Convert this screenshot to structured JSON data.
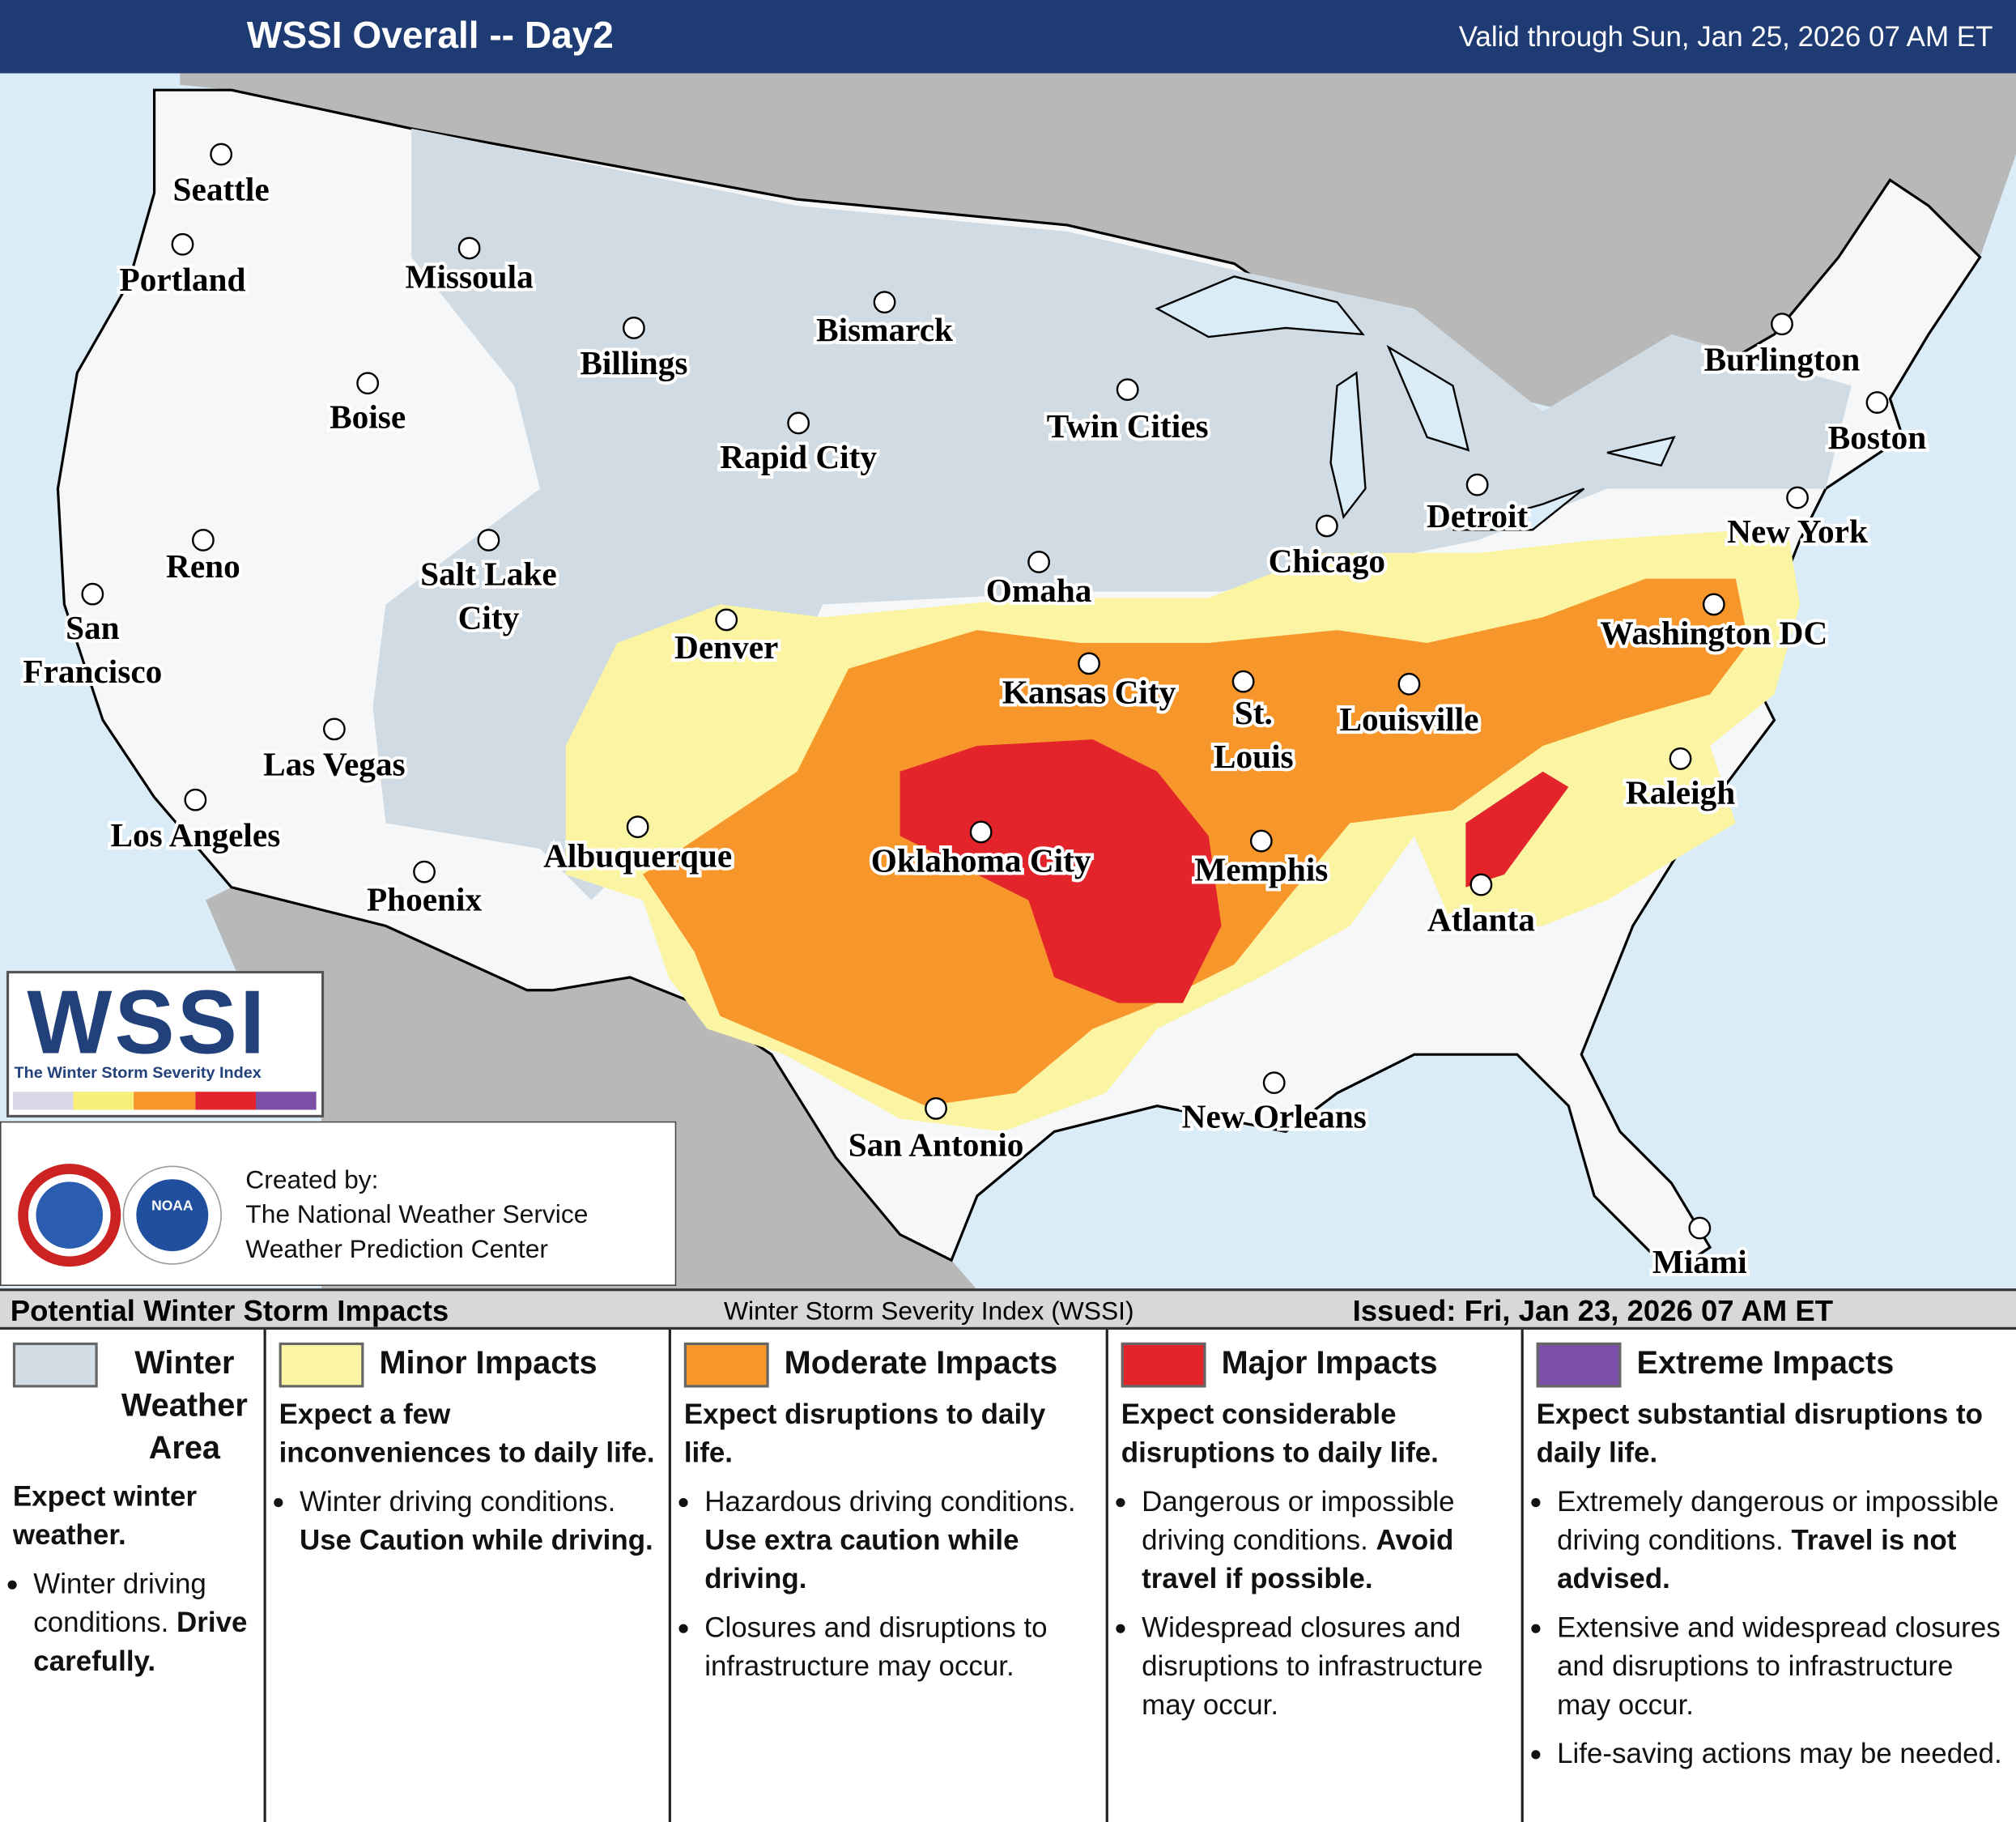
{
  "header": {
    "title": "WSSI Overall -- Day2",
    "valid": "Valid through Sun, Jan 25, 2026 07 AM ET"
  },
  "map": {
    "cities": [
      {
        "label": [
          "Seattle"
        ]
      },
      {
        "label": [
          "Portland"
        ]
      },
      {
        "label": [
          "Missoula"
        ]
      },
      {
        "label": [
          "Billings"
        ]
      },
      {
        "label": [
          "Bismarck"
        ]
      },
      {
        "label": [
          "Boise"
        ]
      },
      {
        "label": [
          "Rapid City"
        ]
      },
      {
        "label": [
          "Twin Cities"
        ]
      },
      {
        "label": [
          "Burlington"
        ]
      },
      {
        "label": [
          "Boston"
        ]
      },
      {
        "label": [
          "Reno"
        ]
      },
      {
        "label": [
          "Salt Lake",
          "City"
        ]
      },
      {
        "label": [
          "Detroit"
        ]
      },
      {
        "label": [
          "New York"
        ]
      },
      {
        "label": [
          "Chicago"
        ]
      },
      {
        "label": [
          "Omaha"
        ]
      },
      {
        "label": [
          "San",
          "Francisco"
        ]
      },
      {
        "label": [
          "Denver"
        ]
      },
      {
        "label": [
          "Washington DC"
        ]
      },
      {
        "label": [
          "Kansas City"
        ]
      },
      {
        "label": [
          "St.",
          "Louis"
        ]
      },
      {
        "label": [
          "Louisville"
        ]
      },
      {
        "label": [
          "Las Vegas"
        ]
      },
      {
        "label": [
          "Raleigh"
        ]
      },
      {
        "label": [
          "Los Angeles"
        ]
      },
      {
        "label": [
          "Albuquerque"
        ]
      },
      {
        "label": [
          "Oklahoma City"
        ]
      },
      {
        "label": [
          "Memphis"
        ]
      },
      {
        "label": [
          "Phoenix"
        ]
      },
      {
        "label": [
          "Atlanta"
        ]
      },
      {
        "label": [
          "New Orleans"
        ]
      },
      {
        "label": [
          "San Antonio"
        ]
      },
      {
        "label": [
          "Miami"
        ]
      }
    ]
  },
  "logo": {
    "text": "WSSI",
    "subtitle": "The Winter Storm Severity Index",
    "noaa": "NOAA"
  },
  "credits": {
    "lines": [
      "Created by:",
      "The National Weather Service",
      "Weather Prediction Center"
    ]
  },
  "footer": {
    "heading": "Potential Winter Storm Impacts",
    "index_name": "Winter Storm Severity Index (WSSI)",
    "issued": "Issued: Fri, Jan 23, 2026 07 AM ET"
  },
  "legend": {
    "categories": [
      {
        "name": "Winter Weather Area",
        "color": "#d3dde5",
        "summary": "Expect winter weather.",
        "bullets": [
          {
            "text": "Winter driving conditions.",
            "bold": "Drive carefully."
          }
        ]
      },
      {
        "name": "Minor Impacts",
        "color": "#faf4a3",
        "summary": "Expect a few inconveniences to daily life.",
        "bullets": [
          {
            "text": "Winter driving conditions.",
            "bold": "Use Caution while driving."
          }
        ]
      },
      {
        "name": "Moderate Impacts",
        "color": "#f7962b",
        "summary": "Expect disruptions to daily life.",
        "bullets": [
          {
            "text": "Hazardous driving conditions.",
            "bold": "Use extra caution while driving."
          },
          {
            "text": "Closures and disruptions to infrastructure may occur."
          }
        ]
      },
      {
        "name": "Major Impacts",
        "color": "#e3242b",
        "summary": "Expect considerable disruptions to daily life.",
        "bullets": [
          {
            "text": "Dangerous or impossible driving conditions.",
            "bold": "Avoid travel if possible."
          },
          {
            "text": "Widespread closures and disruptions to infrastructure may occur."
          }
        ]
      },
      {
        "name": "Extreme Impacts",
        "color": "#7b4fa6",
        "summary": "Expect substantial disruptions to daily life.",
        "bullets": [
          {
            "text": "Extremely dangerous or impossible driving conditions.",
            "bold": "Travel is not advised."
          },
          {
            "text": "Extensive and widespread closures and disruptions to infrastructure may occur."
          },
          {
            "text": "Life-saving actions may be needed."
          }
        ]
      }
    ]
  }
}
